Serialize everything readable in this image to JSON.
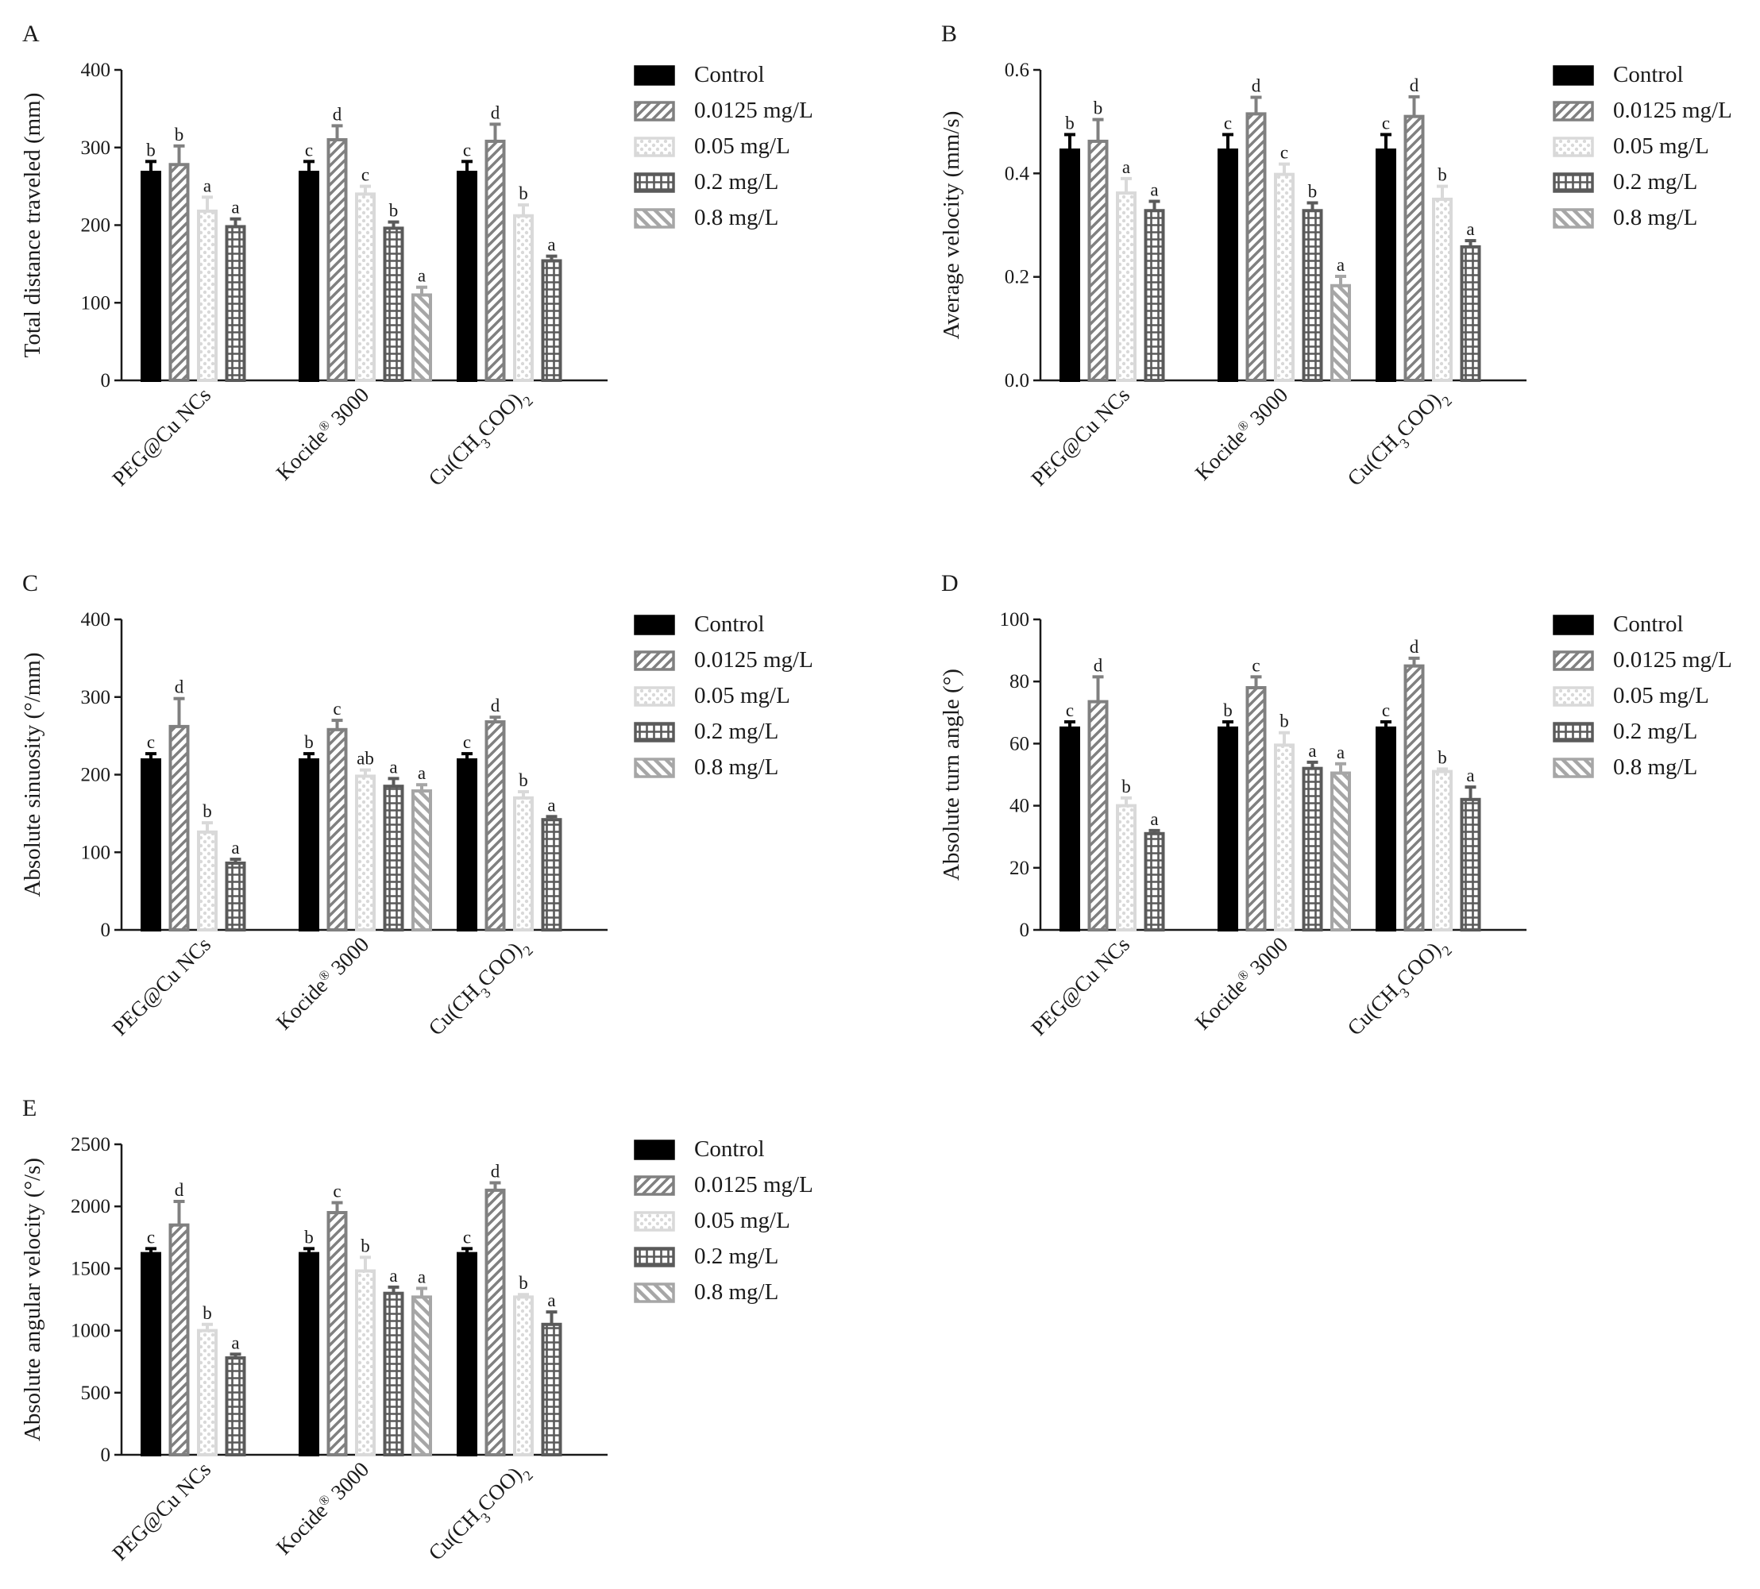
{
  "legend": {
    "labels": [
      "Control",
      "0.0125 mg/L",
      "0.05 mg/L",
      "0.2 mg/L",
      "0.8 mg/L"
    ],
    "styles": [
      {
        "fill": "#000000",
        "stroke": "#000000",
        "pattern": "solid"
      },
      {
        "fill": "#ffffff",
        "stroke": "#808080",
        "pattern": "diagonal-up"
      },
      {
        "fill": "#ffffff",
        "stroke": "#d9d9d9",
        "pattern": "dots"
      },
      {
        "fill": "#ffffff",
        "stroke": "#5a5a5a",
        "pattern": "grid"
      },
      {
        "fill": "#ffffff",
        "stroke": "#a6a6a6",
        "pattern": "diagonal-down"
      }
    ]
  },
  "chart_data": [
    {
      "panel": "A",
      "type": "bar",
      "ylabel": "Total distance traveled (mm)",
      "ylim": [
        0,
        400
      ],
      "yticks": [
        0,
        100,
        200,
        300,
        400
      ],
      "categories": [
        {
          "base": "PEG@Cu NCs"
        },
        {
          "base": "Kocide",
          "sup": "®",
          "tail": " 3000"
        },
        {
          "base": "Cu(CH",
          "sub1": "3",
          "mid": "COO)",
          "sub2": "2"
        }
      ],
      "series": [
        {
          "name": "Control",
          "values": [
            268,
            268,
            268
          ],
          "errors": [
            14,
            14,
            14
          ],
          "letters": [
            "b",
            "c",
            "c"
          ]
        },
        {
          "name": "0.0125 mg/L",
          "values": [
            278,
            310,
            308
          ],
          "errors": [
            24,
            18,
            22
          ],
          "letters": [
            "b",
            "d",
            "d"
          ]
        },
        {
          "name": "0.05 mg/L",
          "values": [
            218,
            240,
            212
          ],
          "errors": [
            18,
            10,
            14
          ],
          "letters": [
            "a",
            "c",
            "b"
          ]
        },
        {
          "name": "0.2 mg/L",
          "values": [
            198,
            196,
            154
          ],
          "errors": [
            10,
            8,
            6
          ],
          "letters": [
            "a",
            "b",
            "a"
          ]
        },
        {
          "name": "0.8 mg/L",
          "values": [
            null,
            110,
            null
          ],
          "errors": [
            null,
            10,
            null
          ],
          "letters": [
            "",
            "a",
            ""
          ]
        }
      ]
    },
    {
      "panel": "B",
      "type": "bar",
      "ylabel": "Average velocity (mm/s)",
      "ylim": [
        0,
        0.6
      ],
      "yticks": [
        "0.0",
        "0.2",
        "0.4",
        "0.6"
      ],
      "categories": [
        {
          "base": "PEG@Cu NCs"
        },
        {
          "base": "Kocide",
          "sup": "®",
          "tail": " 3000"
        },
        {
          "base": "Cu(CH",
          "sub1": "3",
          "mid": "COO)",
          "sub2": "2"
        }
      ],
      "series": [
        {
          "name": "Control",
          "values": [
            0.445,
            0.445,
            0.445
          ],
          "errors": [
            0.03,
            0.03,
            0.03
          ],
          "letters": [
            "b",
            "c",
            "c"
          ]
        },
        {
          "name": "0.0125 mg/L",
          "values": [
            0.462,
            0.515,
            0.51
          ],
          "errors": [
            0.042,
            0.032,
            0.038
          ],
          "letters": [
            "b",
            "d",
            "d"
          ]
        },
        {
          "name": "0.05 mg/L",
          "values": [
            0.362,
            0.398,
            0.35
          ],
          "errors": [
            0.028,
            0.02,
            0.025
          ],
          "letters": [
            "a",
            "c",
            "b"
          ]
        },
        {
          "name": "0.2 mg/L",
          "values": [
            0.328,
            0.328,
            0.258
          ],
          "errors": [
            0.018,
            0.015,
            0.012
          ],
          "letters": [
            "a",
            "b",
            "a"
          ]
        },
        {
          "name": "0.8 mg/L",
          "values": [
            null,
            0.183,
            null
          ],
          "errors": [
            null,
            0.018,
            null
          ],
          "letters": [
            "",
            "a",
            ""
          ]
        }
      ]
    },
    {
      "panel": "C",
      "type": "bar",
      "ylabel": "Absolute  sinuosity (°/mm)",
      "ylim": [
        0,
        400
      ],
      "yticks": [
        0,
        100,
        200,
        300,
        400
      ],
      "categories": [
        {
          "base": "PEG@Cu NCs"
        },
        {
          "base": "Kocide",
          "sup": "®",
          "tail": " 3000"
        },
        {
          "base": "Cu(CH",
          "sub1": "3",
          "mid": "COO)",
          "sub2": "2"
        }
      ],
      "series": [
        {
          "name": "Control",
          "values": [
            219,
            219,
            219
          ],
          "errors": [
            8,
            8,
            8
          ],
          "letters": [
            "c",
            "b",
            "c"
          ]
        },
        {
          "name": "0.0125 mg/L",
          "values": [
            262,
            258,
            268
          ],
          "errors": [
            36,
            12,
            6
          ],
          "letters": [
            "d",
            "c",
            "d"
          ]
        },
        {
          "name": "0.05 mg/L",
          "values": [
            126,
            198,
            170
          ],
          "errors": [
            12,
            8,
            8
          ],
          "letters": [
            "b",
            "ab",
            "b"
          ]
        },
        {
          "name": "0.2 mg/L",
          "values": [
            86,
            185,
            142
          ],
          "errors": [
            5,
            10,
            4
          ],
          "letters": [
            "a",
            "a",
            "a"
          ]
        },
        {
          "name": "0.8 mg/L",
          "values": [
            null,
            179,
            null
          ],
          "errors": [
            null,
            8,
            null
          ],
          "letters": [
            "",
            "a",
            ""
          ]
        }
      ]
    },
    {
      "panel": "D",
      "type": "bar",
      "ylabel": "Absolute turn angle (°)",
      "ylim": [
        0,
        100
      ],
      "yticks": [
        0,
        20,
        40,
        60,
        80,
        100
      ],
      "categories": [
        {
          "base": "PEG@Cu NCs"
        },
        {
          "base": "Kocide",
          "sup": "®",
          "tail": " 3000"
        },
        {
          "base": "Cu(CH",
          "sub1": "3",
          "mid": "COO)",
          "sub2": "2"
        }
      ],
      "series": [
        {
          "name": "Control",
          "values": [
            65,
            65,
            65
          ],
          "errors": [
            2,
            2,
            2
          ],
          "letters": [
            "c",
            "b",
            "c"
          ]
        },
        {
          "name": "0.0125 mg/L",
          "values": [
            73.5,
            78,
            85
          ],
          "errors": [
            8,
            3.5,
            2.5
          ],
          "letters": [
            "d",
            "c",
            "d"
          ]
        },
        {
          "name": "0.05 mg/L",
          "values": [
            40,
            59.5,
            51
          ],
          "errors": [
            2.5,
            4,
            0.8
          ],
          "letters": [
            "b",
            "b",
            "b"
          ]
        },
        {
          "name": "0.2 mg/L",
          "values": [
            31,
            52,
            42
          ],
          "errors": [
            1,
            2,
            4
          ],
          "letters": [
            "a",
            "a",
            "a"
          ]
        },
        {
          "name": "0.8 mg/L",
          "values": [
            null,
            50.5,
            null
          ],
          "errors": [
            null,
            3,
            null
          ],
          "letters": [
            "",
            "a",
            ""
          ]
        }
      ]
    },
    {
      "panel": "E",
      "type": "bar",
      "ylabel": "Absolute angular velocity (°/s)",
      "ylim": [
        0,
        2500
      ],
      "yticks": [
        0,
        500,
        1000,
        1500,
        2000,
        2500
      ],
      "categories": [
        {
          "base": "PEG@Cu NCs"
        },
        {
          "base": "Kocide",
          "sup": "®",
          "tail": " 3000"
        },
        {
          "base": "Cu(CH",
          "sub1": "3",
          "mid": "COO)",
          "sub2": "2"
        }
      ],
      "series": [
        {
          "name": "Control",
          "values": [
            1620,
            1620,
            1620
          ],
          "errors": [
            40,
            40,
            40
          ],
          "letters": [
            "c",
            "b",
            "c"
          ]
        },
        {
          "name": "0.0125 mg/L",
          "values": [
            1850,
            1950,
            2130
          ],
          "errors": [
            190,
            80,
            60
          ],
          "letters": [
            "d",
            "c",
            "d"
          ]
        },
        {
          "name": "0.05 mg/L",
          "values": [
            1000,
            1480,
            1270
          ],
          "errors": [
            50,
            110,
            20
          ],
          "letters": [
            "b",
            "b",
            "b"
          ]
        },
        {
          "name": "0.2 mg/L",
          "values": [
            780,
            1300,
            1050
          ],
          "errors": [
            30,
            50,
            100
          ],
          "letters": [
            "a",
            "a",
            "a"
          ]
        },
        {
          "name": "0.8 mg/L",
          "values": [
            null,
            1270,
            null
          ],
          "errors": [
            null,
            70,
            null
          ],
          "letters": [
            "",
            "a",
            ""
          ]
        }
      ]
    }
  ]
}
